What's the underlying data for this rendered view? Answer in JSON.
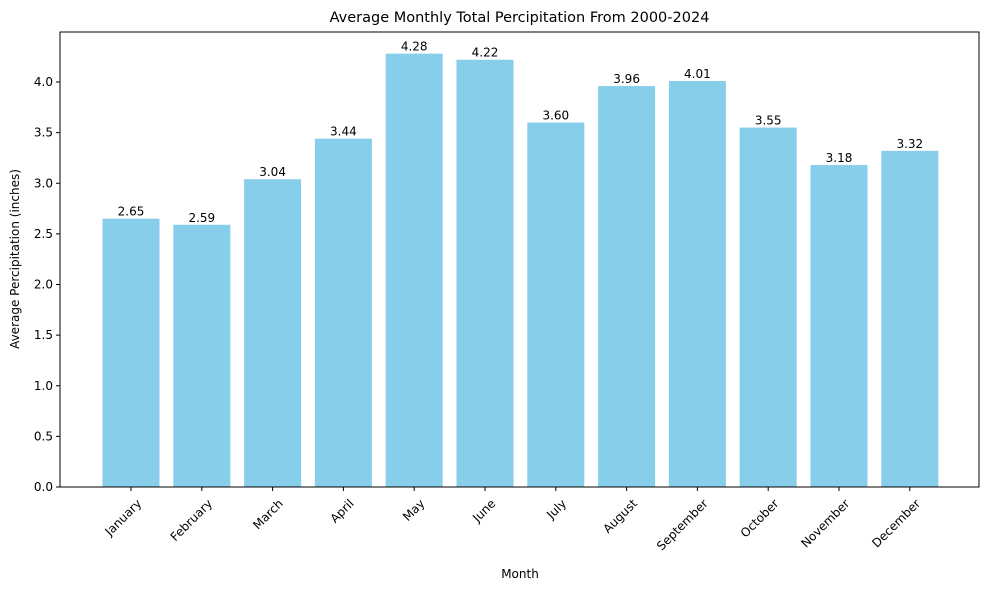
{
  "chart_data": {
    "type": "bar",
    "title": "Average Monthly Total Percipitation From 2000-2024",
    "xlabel": "Month",
    "ylabel": "Average Percipitation (inches)",
    "categories": [
      "January",
      "February",
      "March",
      "April",
      "May",
      "June",
      "July",
      "August",
      "September",
      "October",
      "November",
      "December"
    ],
    "values": [
      2.65,
      2.59,
      3.04,
      3.44,
      4.28,
      4.22,
      3.6,
      3.96,
      4.01,
      3.55,
      3.18,
      3.32
    ],
    "value_labels": [
      "2.65",
      "2.59",
      "3.04",
      "3.44",
      "4.28",
      "4.22",
      "3.60",
      "3.96",
      "4.01",
      "3.55",
      "3.18",
      "3.32"
    ],
    "ylim": [
      0,
      4.494
    ],
    "yticks": [
      0.0,
      0.5,
      1.0,
      1.5,
      2.0,
      2.5,
      3.0,
      3.5,
      4.0
    ],
    "ytick_labels": [
      "0.0",
      "0.5",
      "1.0",
      "1.5",
      "2.0",
      "2.5",
      "3.0",
      "3.5",
      "4.0"
    ],
    "bar_color": "#87ceeb",
    "grid": false,
    "legend": "none"
  }
}
